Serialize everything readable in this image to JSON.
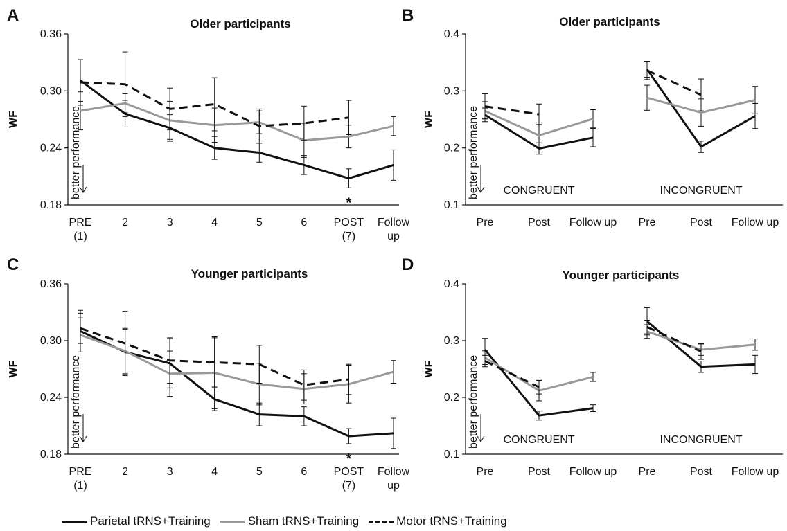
{
  "colors": {
    "parietal": "#111111",
    "sham": "#9a9a9a",
    "motor": "#111111"
  },
  "legend": [
    {
      "label": "Parietal tRNS+Training",
      "style": "solid-black"
    },
    {
      "label": "Sham tRNS+Training",
      "style": "solid-gray"
    },
    {
      "label": "Motor tRNS+Training",
      "style": "dashed-black"
    }
  ],
  "annotation": "better performance",
  "chart_data": [
    {
      "panel": "A",
      "type": "line",
      "title": "Older participants",
      "ylabel": "WF",
      "xlabel": "",
      "ylim": [
        0.18,
        0.36
      ],
      "yticks": [
        "0.18",
        "0.24",
        "0.30",
        "0.36"
      ],
      "categories": [
        [
          "PRE",
          "(1)"
        ],
        [
          "2"
        ],
        [
          "3"
        ],
        [
          "4"
        ],
        [
          "5"
        ],
        [
          "6"
        ],
        [
          "POST",
          "(7)"
        ],
        [
          "Follow",
          "up"
        ]
      ],
      "significance": [
        {
          "category_index": 6,
          "label": "*"
        }
      ],
      "series": [
        {
          "name": "Parietal tRNS+Training",
          "values": [
            0.311,
            0.276,
            0.261,
            0.24,
            0.235,
            0.222,
            0.208,
            0.222
          ],
          "err": [
            0.022,
            0.014,
            0.014,
            0.012,
            0.01,
            0.01,
            0.01,
            0.016
          ]
        },
        {
          "name": "Sham tRNS+Training",
          "values": [
            0.279,
            0.287,
            0.269,
            0.264,
            0.267,
            0.248,
            0.252,
            0.263
          ],
          "err": [
            0.02,
            0.01,
            0.02,
            0.018,
            0.012,
            0.018,
            0.012,
            0.01
          ]
        },
        {
          "name": "Motor tRNS+Training",
          "values": [
            0.309,
            0.307,
            0.281,
            0.286,
            0.263,
            0.266,
            0.272,
            null
          ],
          "err": [
            0.024,
            0.034,
            0.022,
            0.028,
            0.018,
            0.018,
            0.018,
            null
          ]
        }
      ]
    },
    {
      "panel": "B",
      "type": "line",
      "title": "Older participants",
      "ylabel": "WF",
      "xlabel": "",
      "ylim": [
        0.1,
        0.4
      ],
      "yticks": [
        "0.1",
        "0.2",
        "0.3",
        "0.4"
      ],
      "categories": [
        [
          "Pre"
        ],
        [
          "Post"
        ],
        [
          "Follow up"
        ],
        [
          "Pre"
        ],
        [
          "Post"
        ],
        [
          "Follow up"
        ]
      ],
      "groups": [
        {
          "label": "CONGRUENT",
          "indices": [
            0,
            1,
            2
          ]
        },
        {
          "label": "INCONGRUENT",
          "indices": [
            3,
            4,
            5
          ]
        }
      ],
      "series": [
        {
          "name": "Parietal tRNS+Training",
          "values": [
            0.258,
            0.199,
            0.218,
            0.338,
            0.202,
            0.256
          ],
          "err": [
            0.012,
            0.01,
            0.016,
            0.014,
            0.01,
            0.022
          ]
        },
        {
          "name": "Sham tRNS+Training",
          "values": [
            0.265,
            0.222,
            0.251,
            0.288,
            0.262,
            0.284
          ],
          "err": [
            0.016,
            0.022,
            0.016,
            0.022,
            0.024,
            0.024
          ]
        },
        {
          "name": "Motor tRNS+Training",
          "values": [
            0.273,
            0.259,
            null,
            0.336,
            0.293,
            null
          ],
          "err": [
            0.022,
            0.018,
            null,
            0.016,
            0.028,
            null
          ]
        }
      ]
    },
    {
      "panel": "C",
      "type": "line",
      "title": "Younger participants",
      "ylabel": "WF",
      "xlabel": "",
      "ylim": [
        0.18,
        0.36
      ],
      "yticks": [
        "0.18",
        "0.24",
        "0.30",
        "0.36"
      ],
      "categories": [
        [
          "PRE",
          "(1)"
        ],
        [
          "2"
        ],
        [
          "3"
        ],
        [
          "4"
        ],
        [
          "5"
        ],
        [
          "6"
        ],
        [
          "POST",
          "(7)"
        ],
        [
          "Follow",
          "up"
        ]
      ],
      "significance": [
        {
          "category_index": 6,
          "label": "*"
        }
      ],
      "series": [
        {
          "name": "Parietal tRNS+Training",
          "values": [
            0.31,
            0.288,
            0.276,
            0.238,
            0.222,
            0.22,
            0.199,
            0.202
          ],
          "err": [
            0.022,
            0.024,
            0.026,
            0.012,
            0.012,
            0.01,
            0.008,
            0.016
          ]
        },
        {
          "name": "Sham tRNS+Training",
          "values": [
            0.306,
            0.289,
            0.265,
            0.266,
            0.254,
            0.249,
            0.254,
            0.267
          ],
          "err": [
            0.018,
            0.024,
            0.024,
            0.038,
            0.022,
            0.016,
            0.02,
            0.012
          ]
        },
        {
          "name": "Motor tRNS+Training",
          "values": [
            0.313,
            0.297,
            0.279,
            0.277,
            0.275,
            0.253,
            0.259,
            null
          ],
          "err": [
            0.016,
            0.034,
            0.024,
            0.026,
            0.02,
            0.016,
            0.016,
            null
          ]
        }
      ]
    },
    {
      "panel": "D",
      "type": "line",
      "title": "Younger participants",
      "ylabel": "WF",
      "xlabel": "",
      "ylim": [
        0.1,
        0.4
      ],
      "yticks": [
        "0.1",
        "0.2",
        "0.3",
        "0.4"
      ],
      "categories": [
        [
          "Pre"
        ],
        [
          "Post"
        ],
        [
          "Follow up"
        ],
        [
          "Pre"
        ],
        [
          "Post"
        ],
        [
          "Follow up"
        ]
      ],
      "groups": [
        {
          "label": "CONGRUENT",
          "indices": [
            0,
            1,
            2
          ]
        },
        {
          "label": "INCONGRUENT",
          "indices": [
            3,
            4,
            5
          ]
        }
      ],
      "series": [
        {
          "name": "Parietal tRNS+Training",
          "values": [
            0.284,
            0.168,
            0.181,
            0.334,
            0.254,
            0.258
          ],
          "err": [
            0.02,
            0.008,
            0.006,
            0.024,
            0.01,
            0.016
          ]
        },
        {
          "name": "Sham tRNS+Training",
          "values": [
            0.27,
            0.212,
            0.236,
            0.316,
            0.284,
            0.293
          ],
          "err": [
            0.012,
            0.018,
            0.008,
            0.012,
            0.01,
            0.01
          ]
        },
        {
          "name": "Motor tRNS+Training",
          "values": [
            0.264,
            0.218,
            null,
            0.324,
            0.281,
            null
          ],
          "err": [
            0.01,
            0.012,
            null,
            0.012,
            0.014,
            null
          ]
        }
      ]
    }
  ]
}
